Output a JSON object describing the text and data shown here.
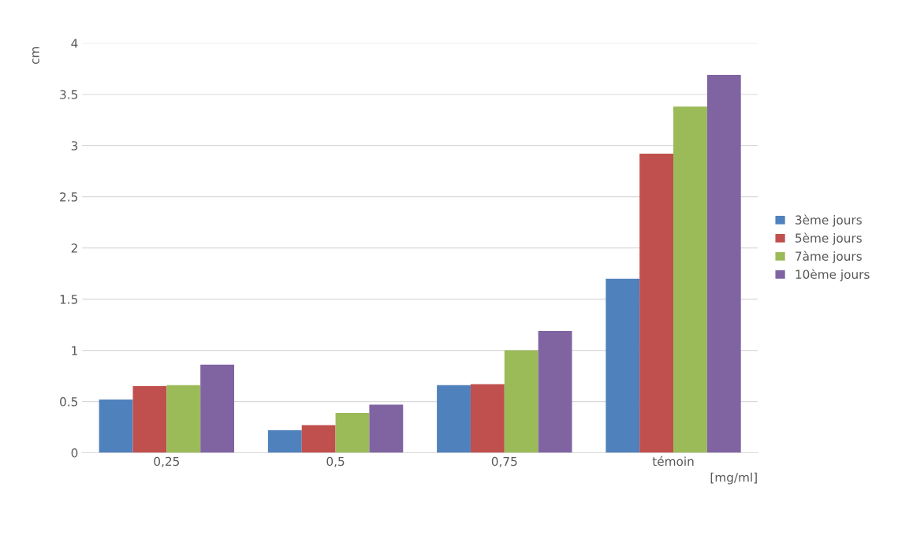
{
  "chart_data": {
    "type": "bar",
    "ylabel": "cm",
    "xlabel": "[mg/ml]",
    "categories": [
      "0,25",
      "0,5",
      "0,75",
      "témoin"
    ],
    "series": [
      {
        "name": "3ème jours",
        "color": "#4f81bd",
        "values": [
          0.52,
          0.22,
          0.66,
          1.7
        ]
      },
      {
        "name": "5ème jours",
        "color": "#c0504d",
        "values": [
          0.65,
          0.27,
          0.67,
          2.92
        ]
      },
      {
        "name": "7àme jours",
        "color": "#9bbb59",
        "values": [
          0.66,
          0.39,
          1.0,
          3.38
        ]
      },
      {
        "name": "10ème jours",
        "color": "#8064a2",
        "values": [
          0.86,
          0.47,
          1.19,
          3.69
        ]
      }
    ],
    "ylim": [
      0,
      4
    ],
    "yticks": [
      0,
      0.5,
      1,
      1.5,
      2,
      2.5,
      3,
      3.5,
      4
    ],
    "grid": "y",
    "legend": "right"
  }
}
